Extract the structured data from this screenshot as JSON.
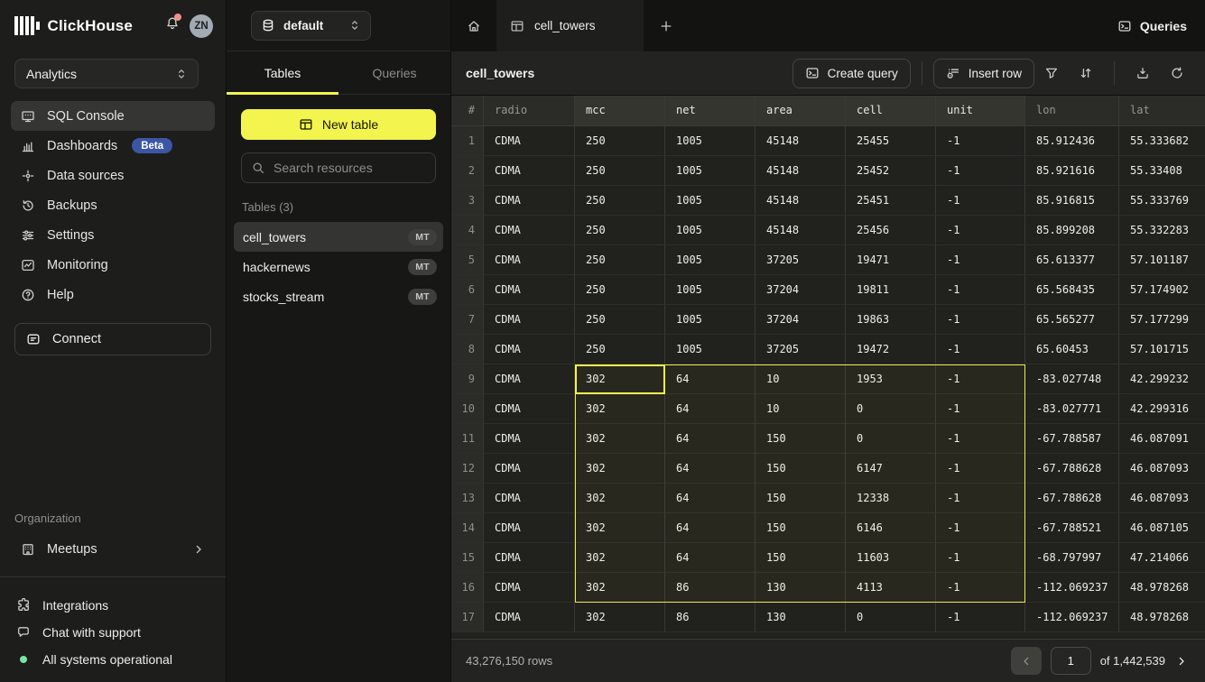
{
  "colors": {
    "accent_yellow": "#f3f54e",
    "selection_yellow": "#e9eb54",
    "beta_blue": "#3c56a6",
    "status_green": "#7be3a4",
    "notification_red": "#f0908c"
  },
  "sidebar": {
    "brand": "ClickHouse",
    "avatar": "ZN",
    "workspace": {
      "value": "Analytics"
    },
    "nav": [
      {
        "label": "SQL Console",
        "icon": "console-icon",
        "active": true
      },
      {
        "label": "Dashboards",
        "icon": "dashboards-icon",
        "badge": "Beta"
      },
      {
        "label": "Data sources",
        "icon": "data-sources-icon"
      },
      {
        "label": "Backups",
        "icon": "backups-icon"
      },
      {
        "label": "Settings",
        "icon": "settings-icon"
      },
      {
        "label": "Monitoring",
        "icon": "monitoring-icon"
      },
      {
        "label": "Help",
        "icon": "help-icon"
      }
    ],
    "connect_label": "Connect",
    "organization_label": "Organization",
    "org_nav": [
      {
        "label": "Meetups",
        "icon": "meetups-icon",
        "chevron": true
      }
    ],
    "footer_nav": [
      {
        "label": "Integrations",
        "icon": "integrations-icon"
      },
      {
        "label": "Chat with support",
        "icon": "chat-icon"
      },
      {
        "label": "All systems operational",
        "icon": "status-dot",
        "dot": true
      }
    ]
  },
  "explorer": {
    "database": "default",
    "tabs": [
      {
        "label": "Tables",
        "active": true
      },
      {
        "label": "Queries",
        "active": false
      }
    ],
    "new_table_label": "New table",
    "search_placeholder": "Search resources",
    "section_label": "Tables (3)",
    "tables": [
      {
        "name": "cell_towers",
        "badge": "MT",
        "active": true
      },
      {
        "name": "hackernews",
        "badge": "MT",
        "active": false
      },
      {
        "name": "stocks_stream",
        "badge": "MT",
        "active": false
      }
    ]
  },
  "main": {
    "active_tab": "cell_towers",
    "queries_button": "Queries",
    "title": "cell_towers",
    "create_query_label": "Create query",
    "insert_row_label": "Insert row"
  },
  "grid": {
    "columns": [
      "#",
      "radio",
      "mcc",
      "net",
      "area",
      "cell",
      "unit",
      "lon",
      "lat"
    ],
    "highlighted_columns": [
      "mcc",
      "net",
      "area",
      "cell",
      "unit"
    ],
    "rows": [
      [
        "CDMA",
        "250",
        "1005",
        "45148",
        "25455",
        "-1",
        "85.912436",
        "55.333682"
      ],
      [
        "CDMA",
        "250",
        "1005",
        "45148",
        "25452",
        "-1",
        "85.921616",
        "55.33408"
      ],
      [
        "CDMA",
        "250",
        "1005",
        "45148",
        "25451",
        "-1",
        "85.916815",
        "55.333769"
      ],
      [
        "CDMA",
        "250",
        "1005",
        "45148",
        "25456",
        "-1",
        "85.899208",
        "55.332283"
      ],
      [
        "CDMA",
        "250",
        "1005",
        "37205",
        "19471",
        "-1",
        "65.613377",
        "57.101187"
      ],
      [
        "CDMA",
        "250",
        "1005",
        "37204",
        "19811",
        "-1",
        "65.568435",
        "57.174902"
      ],
      [
        "CDMA",
        "250",
        "1005",
        "37204",
        "19863",
        "-1",
        "65.565277",
        "57.177299"
      ],
      [
        "CDMA",
        "250",
        "1005",
        "37205",
        "19472",
        "-1",
        "65.60453",
        "57.101715"
      ],
      [
        "CDMA",
        "302",
        "64",
        "10",
        "1953",
        "-1",
        "-83.027748",
        "42.299232"
      ],
      [
        "CDMA",
        "302",
        "64",
        "10",
        "0",
        "-1",
        "-83.027771",
        "42.299316"
      ],
      [
        "CDMA",
        "302",
        "64",
        "150",
        "0",
        "-1",
        "-67.788587",
        "46.087091"
      ],
      [
        "CDMA",
        "302",
        "64",
        "150",
        "6147",
        "-1",
        "-67.788628",
        "46.087093"
      ],
      [
        "CDMA",
        "302",
        "64",
        "150",
        "12338",
        "-1",
        "-67.788628",
        "46.087093"
      ],
      [
        "CDMA",
        "302",
        "64",
        "150",
        "6146",
        "-1",
        "-67.788521",
        "46.087105"
      ],
      [
        "CDMA",
        "302",
        "64",
        "150",
        "11603",
        "-1",
        "-68.797997",
        "47.214066"
      ],
      [
        "CDMA",
        "302",
        "86",
        "130",
        "4113",
        "-1",
        "-112.069237",
        "48.978268"
      ],
      [
        "CDMA",
        "302",
        "86",
        "130",
        "0",
        "-1",
        "-112.069237",
        "48.978268"
      ]
    ],
    "selection": {
      "row_start": 9,
      "row_end": 16,
      "column_start": "mcc",
      "column_end": "unit",
      "active_cell": {
        "row": 9,
        "column": "mcc"
      }
    }
  },
  "statusbar": {
    "rows_label": "43,276,150 rows",
    "page": "1",
    "total_label": "of 1,442,539"
  }
}
